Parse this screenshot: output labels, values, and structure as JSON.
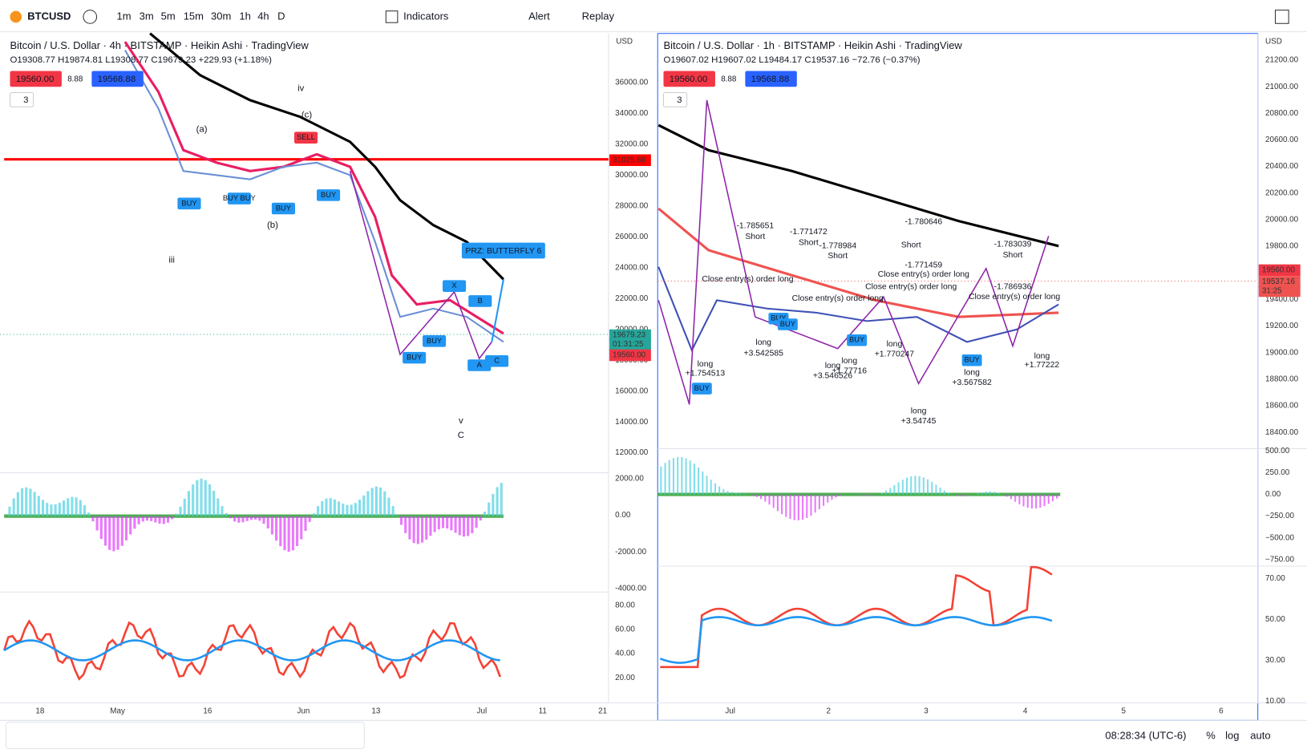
{
  "toolbar": {
    "symbol": "BTCUSD",
    "intervals": [
      "1m",
      "3m",
      "5m",
      "15m",
      "30m",
      "1h",
      "4h",
      "D"
    ],
    "indicators": "Indicators",
    "alert": "Alert",
    "replay": "Replay"
  },
  "left": {
    "title": "Bitcoin / U.S. Dollar · 4h · BITSTAMP · Heikin Ashi · TradingView",
    "ohlc": "O19308.77 H19874.81 L19308.77 C19679.23 +229.93 (+1.18%)",
    "bid": "19560.00",
    "spread": "8.88",
    "ask": "19568.88",
    "count": "3",
    "currency": "USD",
    "price_axis": [
      "36000.00",
      "34000.00",
      "32000.00",
      "30000.00",
      "28000.00",
      "26000.00",
      "24000.00",
      "22000.00",
      "20000.00",
      "18000.00",
      "16000.00",
      "14000.00",
      "12000.00"
    ],
    "osc_axis": [
      "2000.00",
      "0.00",
      "-2000.00",
      "-4000.00"
    ],
    "rsi_axis": [
      "80.00",
      "60.00",
      "40.00",
      "20.00"
    ],
    "hline_badge": "31025.68",
    "last_badge": "19679.23",
    "countdown": "01:31:25",
    "bid_badge": "19560.00",
    "dates": [
      "18",
      "May",
      "16",
      "Jun",
      "13",
      "Jul",
      "11",
      "21"
    ],
    "annotations": [
      "(a)",
      "(b)",
      "(c)",
      "iii",
      "iv",
      "v",
      "C",
      "X",
      "B",
      "A",
      "C",
      "BUY",
      "BUY BUY",
      "BUY",
      "BUY",
      "BUY",
      "BUY",
      "SELL"
    ],
    "prz": "PRZ: BUTTERFLY 6"
  },
  "right": {
    "title": "Bitcoin / U.S. Dollar · 1h · BITSTAMP · Heikin Ashi · TradingView",
    "ohlc": "O19607.02 H19607.02 L19484.17 C19537.16 −72.76 (−0.37%)",
    "bid": "19560.00",
    "spread": "8.88",
    "ask": "19568.88",
    "count": "3",
    "currency": "USD",
    "price_axis": [
      "21200.00",
      "21000.00",
      "20800.00",
      "20600.00",
      "20400.00",
      "20200.00",
      "20000.00",
      "19800.00",
      "19600.00",
      "19400.00",
      "19200.00",
      "19000.00",
      "18800.00",
      "18600.00",
      "18400.00"
    ],
    "osc_axis": [
      "500.00",
      "250.00",
      "0.00",
      "−250.00",
      "−500.00",
      "−750.00"
    ],
    "rsi_axis": [
      "70.00",
      "50.00",
      "30.00",
      "10.00"
    ],
    "bid_badge": "19560.00",
    "last_badge": "19537.16",
    "countdown": "31:25",
    "dates": [
      "Jul",
      "2",
      "3",
      "4",
      "5",
      "6"
    ],
    "annotations": [
      "-1.785651",
      "Short",
      "-1.771472",
      "Short",
      "-1.778984",
      "Short",
      "-1.780646",
      "Short",
      "-1.771459",
      "Close entry(s) order long",
      "-1.783039",
      "Short",
      "Close entry(s) order long",
      "-1.786936",
      "Close entry(s) order long",
      "Close entry(s) order long",
      "Close entry(s) order long",
      "long",
      "+1.754513",
      "long",
      "+3.542585",
      "long",
      "+1.77716",
      "long",
      "+3.546526",
      "long",
      "+1.770247",
      "long",
      "+3.54745",
      "long",
      "+3.567582",
      "long",
      "+1.77222",
      "BUY",
      "BUY",
      "BUY",
      "BUY",
      "BUY"
    ]
  },
  "footer": {
    "time": "08:28:34 (UTC-6)",
    "percent": "%",
    "log": "log",
    "auto": "auto"
  }
}
